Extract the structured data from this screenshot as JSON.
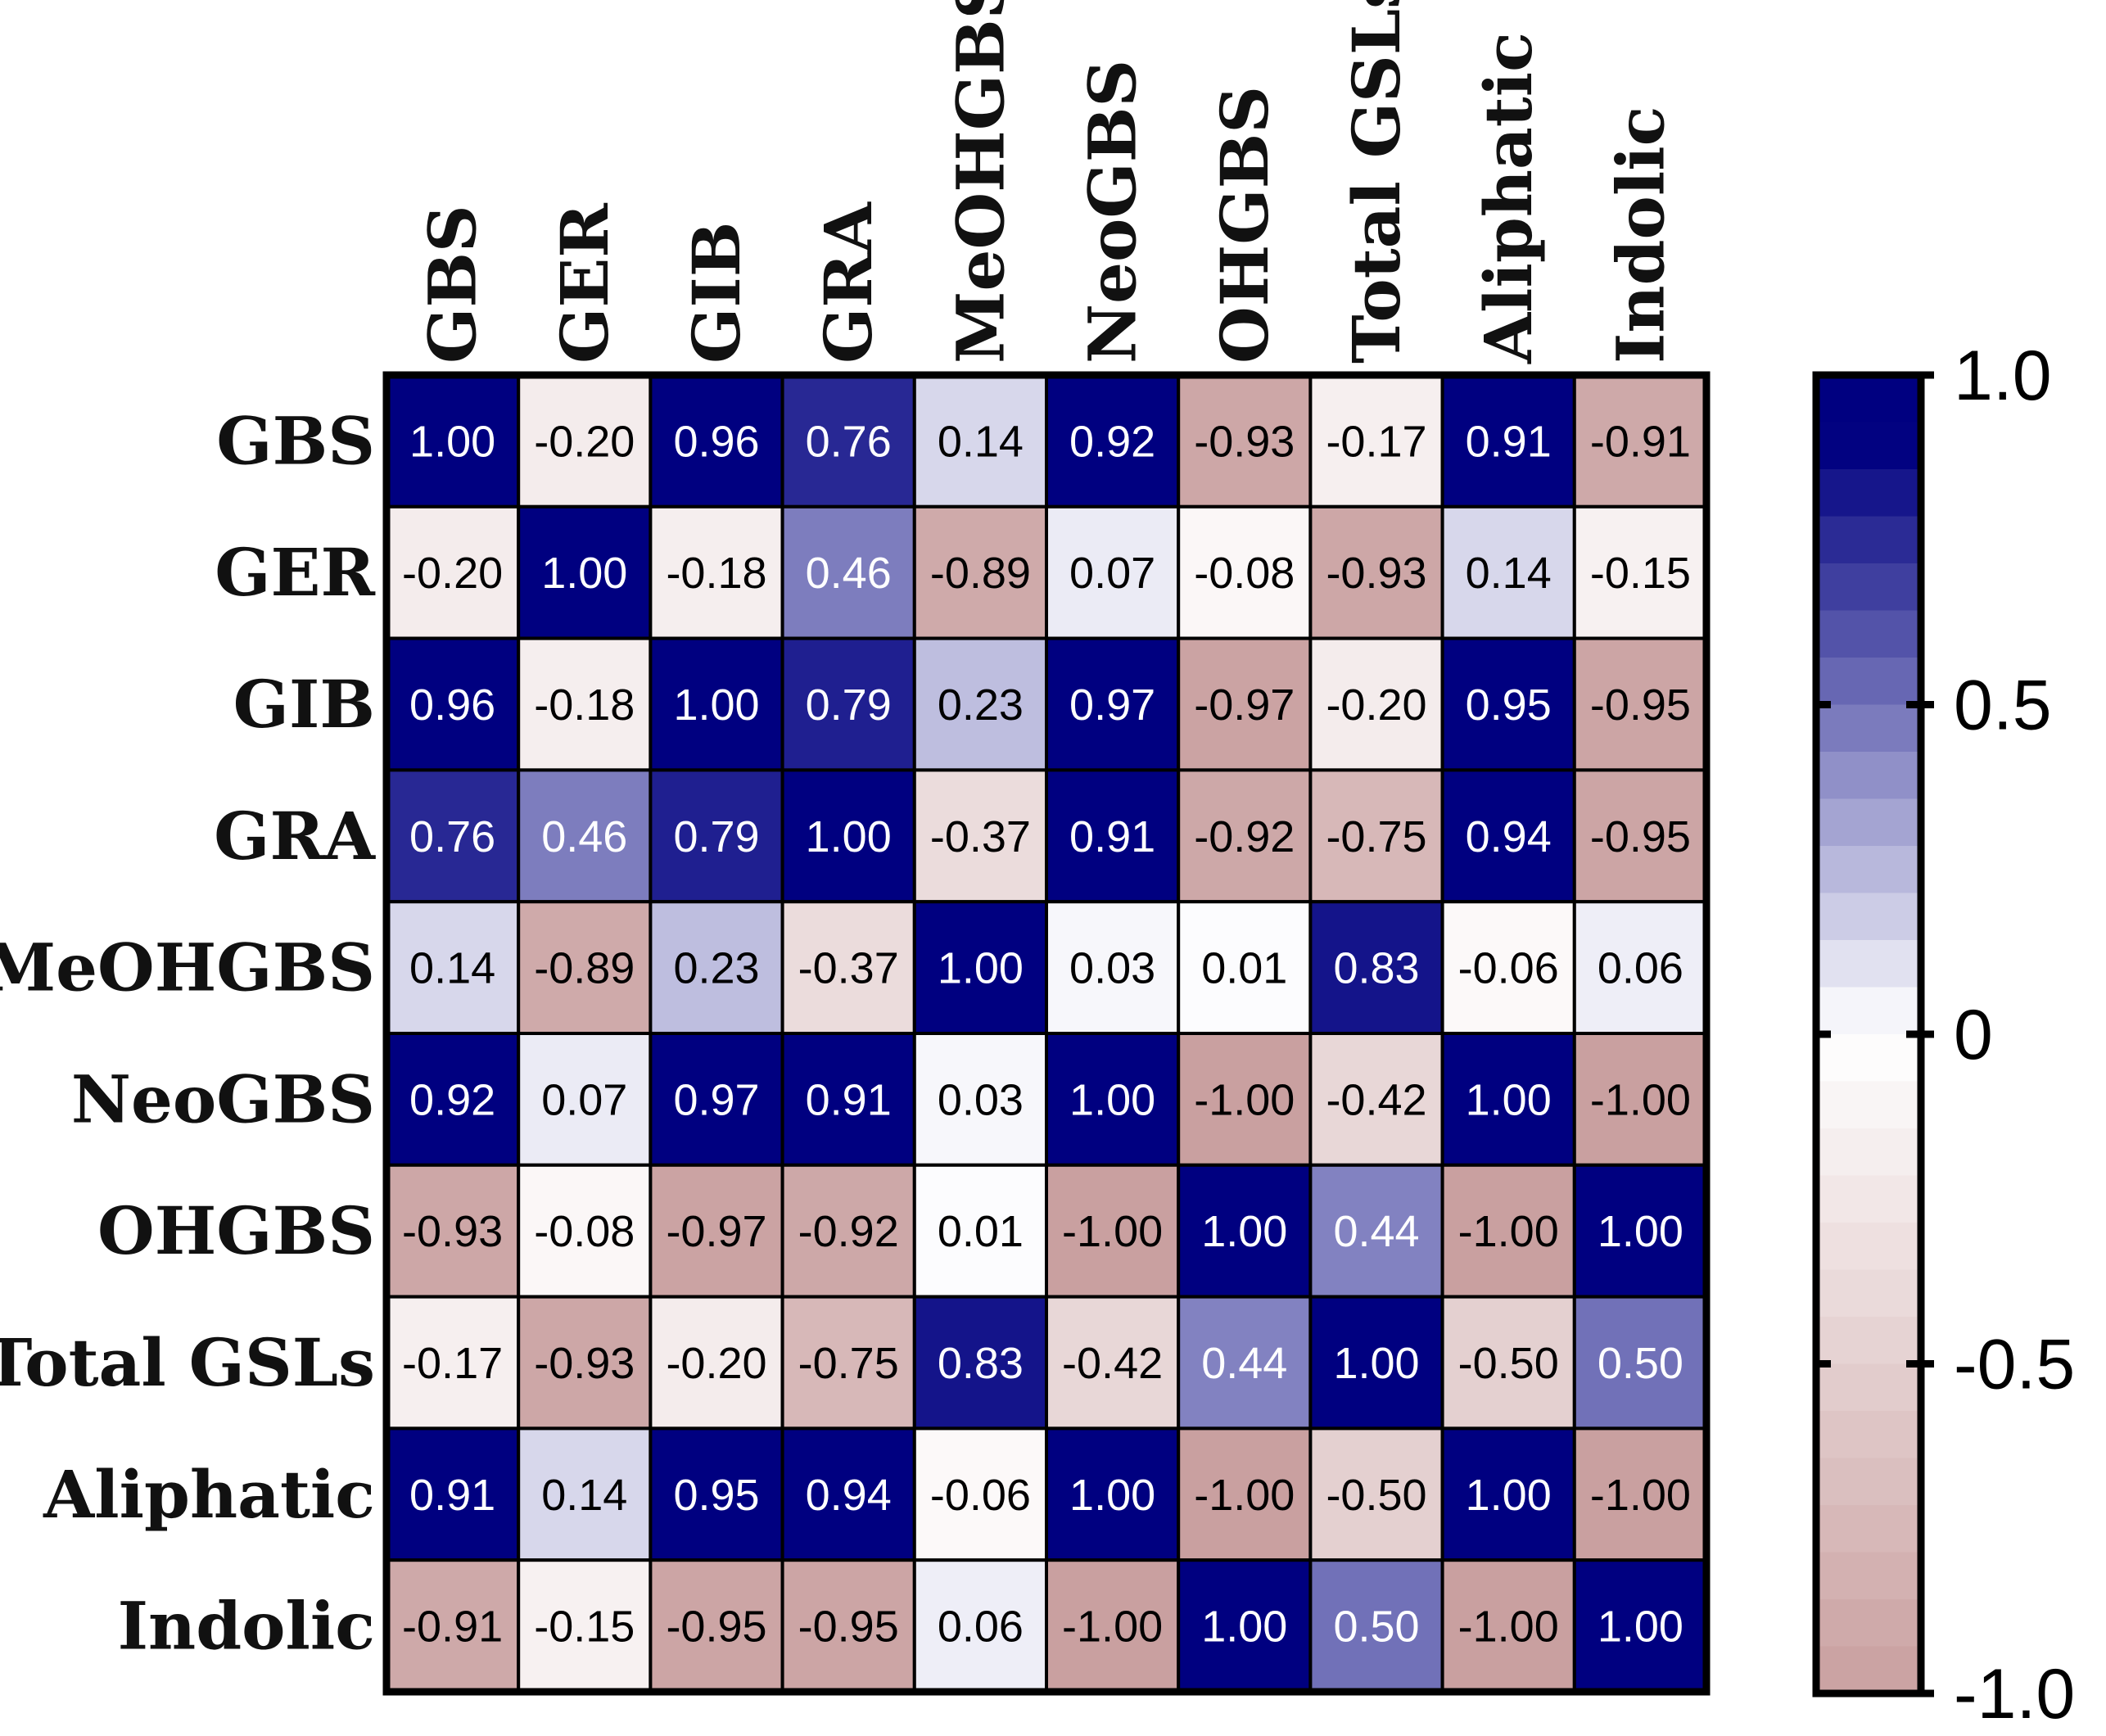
{
  "chart_data": {
    "type": "heatmap",
    "title": "",
    "row_labels": [
      "GBS",
      "GER",
      "GIB",
      "GRA",
      "MeOHGBS",
      "NeoGBS",
      "OHGBS",
      "Total GSLs",
      "Aliphatic",
      "Indolic"
    ],
    "column_labels": [
      "GBS",
      "GER",
      "GIB",
      "GRA",
      "MeOHGBS",
      "NeoGBS",
      "OHGBS",
      "Total GSLs",
      "Aliphatic",
      "Indolic"
    ],
    "values": [
      [
        1.0,
        -0.2,
        0.96,
        0.76,
        0.14,
        0.92,
        -0.93,
        -0.17,
        0.91,
        -0.91
      ],
      [
        -0.2,
        1.0,
        -0.18,
        0.46,
        -0.89,
        0.07,
        -0.08,
        -0.93,
        0.14,
        -0.15
      ],
      [
        0.96,
        -0.18,
        1.0,
        0.79,
        0.23,
        0.97,
        -0.97,
        -0.2,
        0.95,
        -0.95
      ],
      [
        0.76,
        0.46,
        0.79,
        1.0,
        -0.37,
        0.91,
        -0.92,
        -0.75,
        0.94,
        -0.95
      ],
      [
        0.14,
        -0.89,
        0.23,
        -0.37,
        1.0,
        0.03,
        0.01,
        0.83,
        -0.06,
        0.06
      ],
      [
        0.92,
        0.07,
        0.97,
        0.91,
        0.03,
        1.0,
        -1.0,
        -0.42,
        1.0,
        -1.0
      ],
      [
        -0.93,
        -0.08,
        -0.97,
        -0.92,
        0.01,
        -1.0,
        1.0,
        0.44,
        -1.0,
        1.0
      ],
      [
        -0.17,
        -0.93,
        -0.2,
        -0.75,
        0.83,
        -0.42,
        0.44,
        1.0,
        -0.5,
        0.5
      ],
      [
        0.91,
        0.14,
        0.95,
        0.94,
        -0.06,
        1.0,
        -1.0,
        -0.5,
        1.0,
        -1.0
      ],
      [
        -0.91,
        -0.15,
        -0.95,
        -0.95,
        0.06,
        -1.0,
        1.0,
        0.5,
        -1.0,
        1.0
      ]
    ],
    "value_format": "2 decimals",
    "colorbar": {
      "range": [
        -1.0,
        1.0
      ],
      "ticks": [
        1.0,
        0.5,
        0,
        -0.5,
        -1.0
      ],
      "tick_labels": [
        "1.0",
        "0.5",
        "0",
        "-0.5",
        "-1.0"
      ],
      "positive_color": "#000080",
      "zero_color": "#ffffff",
      "negative_color": "#c9a0a0",
      "steps": 28
    },
    "legend": "right"
  }
}
